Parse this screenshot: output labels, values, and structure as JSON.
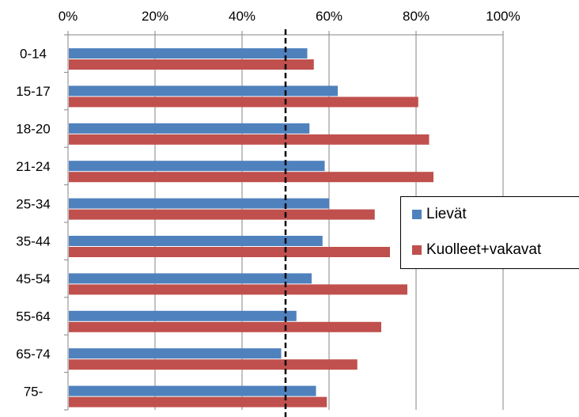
{
  "chart_data": {
    "type": "bar",
    "orientation": "horizontal",
    "categories": [
      "0-14",
      "15-17",
      "18-20",
      "21-24",
      "25-34",
      "35-44",
      "45-54",
      "55-64",
      "65-74",
      "75-"
    ],
    "series": [
      {
        "name": "Lievät",
        "color": "#4f81bd",
        "values": [
          55.0,
          62.0,
          55.5,
          59.0,
          60.0,
          58.5,
          56.0,
          52.5,
          49.0,
          57.0
        ]
      },
      {
        "name": "Kuolleet+vakavat",
        "color": "#c0504d",
        "values": [
          56.5,
          80.5,
          83.0,
          84.0,
          70.5,
          74.0,
          78.0,
          72.0,
          66.5,
          59.5
        ]
      }
    ],
    "xlim": [
      0,
      100
    ],
    "x_ticks": [
      "0%",
      "20%",
      "40%",
      "60%",
      "80%",
      "100%"
    ],
    "x_axis_position": "top",
    "gridlines": "vertical",
    "reference_line": {
      "value": 50,
      "style": "dashed",
      "color": "#000000"
    },
    "legend": {
      "position": "right",
      "entries": [
        "Lievät",
        "Kuolleet+vakavat"
      ]
    },
    "title": "",
    "xlabel": "",
    "ylabel": ""
  }
}
